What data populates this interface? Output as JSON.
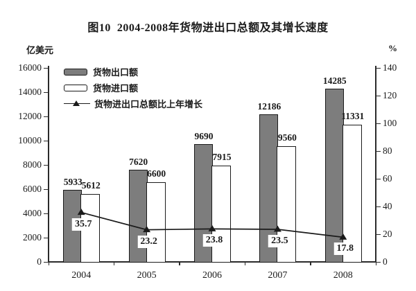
{
  "title": "图10  2004-2008年货物进出口总额及其增长速度",
  "left_axis_unit": "亿美元",
  "right_axis_unit": "%",
  "legend": {
    "export_label": "货物出口额",
    "import_label": "货物进口额",
    "growth_label": "货物进出口总额比上年增长"
  },
  "colors": {
    "export_bar": "#7d7d7d",
    "import_bar": "#ffffff",
    "bar_border": "#1a1a1a",
    "growth_line": "#1a1a1a",
    "text": "#1a1a1a",
    "background": "#ffffff"
  },
  "chart_data": {
    "type": "bar",
    "title": "图10  2004-2008年货物进出口总额及其增长速度",
    "categories": [
      "2004",
      "2005",
      "2006",
      "2007",
      "2008"
    ],
    "series": [
      {
        "name": "货物出口额",
        "type": "bar",
        "axis": "left",
        "color": "#7d7d7d",
        "values": [
          5933,
          7620,
          9690,
          12186,
          14285
        ]
      },
      {
        "name": "货物进口额",
        "type": "bar",
        "axis": "left",
        "color": "#ffffff",
        "values": [
          5612,
          6600,
          7915,
          9560,
          11331
        ]
      },
      {
        "name": "货物进出口总额比上年增长",
        "type": "line",
        "axis": "right",
        "color": "#1a1a1a",
        "marker": "triangle-up",
        "values": [
          35.7,
          23.2,
          23.8,
          23.5,
          17.8
        ]
      }
    ],
    "left_axis": {
      "label": "亿美元",
      "min": 0,
      "max": 16000,
      "step": 2000
    },
    "right_axis": {
      "label": "%",
      "min": 0,
      "max": 140,
      "step": 20
    },
    "grid": false,
    "legend_position": "top-left-inside"
  }
}
